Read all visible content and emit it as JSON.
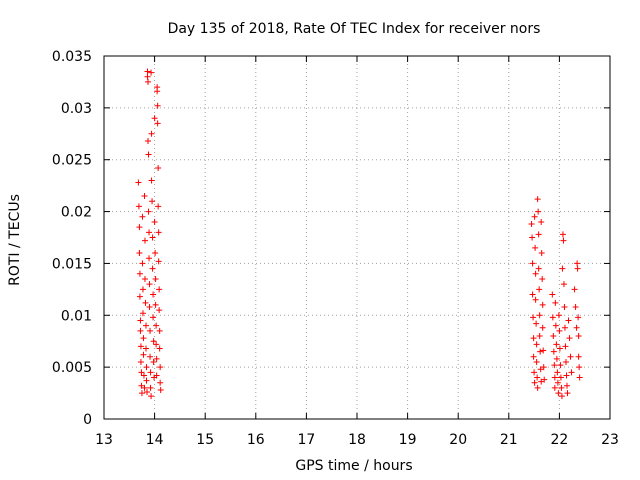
{
  "chart_data": {
    "type": "scatter",
    "title": "Day 135 of 2018, Rate Of TEC Index for receiver nors",
    "xlabel": "GPS time / hours",
    "ylabel": "ROTI / TECUs",
    "xlim": [
      13,
      23
    ],
    "ylim": [
      0,
      0.035
    ],
    "grid": true,
    "x_ticks": [
      13,
      14,
      15,
      16,
      17,
      18,
      19,
      20,
      21,
      22,
      23
    ],
    "x_tick_labels": [
      "13",
      "14",
      "15",
      "16",
      "17",
      "18",
      "19",
      "20",
      "21",
      "22",
      "23"
    ],
    "y_ticks": [
      0,
      0.005,
      0.01,
      0.015,
      0.02,
      0.025,
      0.03,
      0.035
    ],
    "y_tick_labels": [
      "0",
      "0.005",
      "0.01",
      "0.015",
      "0.02",
      "0.025",
      "0.03",
      "0.035"
    ],
    "marker": "+",
    "series_color": "#ff0000",
    "series": [
      {
        "name": "ROTI",
        "points": [
          [
            13.68,
            0.0228
          ],
          [
            13.69,
            0.0205
          ],
          [
            13.7,
            0.0185
          ],
          [
            13.7,
            0.016
          ],
          [
            13.71,
            0.014
          ],
          [
            13.71,
            0.0118
          ],
          [
            13.72,
            0.0095
          ],
          [
            13.72,
            0.0085
          ],
          [
            13.73,
            0.007
          ],
          [
            13.73,
            0.0055
          ],
          [
            13.74,
            0.0045
          ],
          [
            13.74,
            0.0032
          ],
          [
            13.75,
            0.0025
          ],
          [
            13.76,
            0.0195
          ],
          [
            13.76,
            0.015
          ],
          [
            13.77,
            0.0125
          ],
          [
            13.77,
            0.0102
          ],
          [
            13.78,
            0.0078
          ],
          [
            13.78,
            0.0062
          ],
          [
            13.79,
            0.0042
          ],
          [
            13.8,
            0.003
          ],
          [
            13.8,
            0.0215
          ],
          [
            13.81,
            0.0172
          ],
          [
            13.81,
            0.0135
          ],
          [
            13.82,
            0.0112
          ],
          [
            13.83,
            0.009
          ],
          [
            13.83,
            0.0068
          ],
          [
            13.84,
            0.005
          ],
          [
            13.84,
            0.0037
          ],
          [
            13.85,
            0.0026
          ],
          [
            13.86,
            0.0335
          ],
          [
            13.86,
            0.033
          ],
          [
            13.87,
            0.0325
          ],
          [
            13.87,
            0.0268
          ],
          [
            13.88,
            0.0255
          ],
          [
            13.88,
            0.02
          ],
          [
            13.89,
            0.018
          ],
          [
            13.89,
            0.0155
          ],
          [
            13.9,
            0.013
          ],
          [
            13.9,
            0.0108
          ],
          [
            13.91,
            0.0085
          ],
          [
            13.91,
            0.006
          ],
          [
            13.92,
            0.0045
          ],
          [
            13.92,
            0.003
          ],
          [
            13.93,
            0.0022
          ],
          [
            13.93,
            0.0334
          ],
          [
            13.94,
            0.0275
          ],
          [
            13.94,
            0.023
          ],
          [
            13.95,
            0.021
          ],
          [
            13.96,
            0.0175
          ],
          [
            13.96,
            0.0145
          ],
          [
            13.97,
            0.012
          ],
          [
            13.97,
            0.0098
          ],
          [
            13.98,
            0.0075
          ],
          [
            13.98,
            0.0055
          ],
          [
            13.99,
            0.004
          ],
          [
            14.0,
            0.029
          ],
          [
            14.0,
            0.019
          ],
          [
            14.01,
            0.016
          ],
          [
            14.02,
            0.0135
          ],
          [
            14.02,
            0.011
          ],
          [
            14.03,
            0.009
          ],
          [
            14.03,
            0.0072
          ],
          [
            14.04,
            0.0058
          ],
          [
            14.04,
            0.0042
          ],
          [
            14.05,
            0.032
          ],
          [
            14.05,
            0.0316
          ],
          [
            14.06,
            0.0302
          ],
          [
            14.06,
            0.0285
          ],
          [
            14.07,
            0.0242
          ],
          [
            14.07,
            0.0205
          ],
          [
            14.08,
            0.018
          ],
          [
            14.08,
            0.0152
          ],
          [
            14.09,
            0.0125
          ],
          [
            14.09,
            0.0105
          ],
          [
            14.1,
            0.0085
          ],
          [
            14.1,
            0.0068
          ],
          [
            14.11,
            0.005
          ],
          [
            14.11,
            0.0035
          ],
          [
            14.12,
            0.0028
          ],
          [
            21.45,
            0.0188
          ],
          [
            21.46,
            0.0175
          ],
          [
            21.47,
            0.015
          ],
          [
            21.47,
            0.012
          ],
          [
            21.48,
            0.0098
          ],
          [
            21.49,
            0.0078
          ],
          [
            21.49,
            0.006
          ],
          [
            21.5,
            0.0045
          ],
          [
            21.51,
            0.0035
          ],
          [
            21.51,
            0.0195
          ],
          [
            21.52,
            0.0165
          ],
          [
            21.53,
            0.014
          ],
          [
            21.53,
            0.0115
          ],
          [
            21.54,
            0.0092
          ],
          [
            21.55,
            0.0072
          ],
          [
            21.55,
            0.0055
          ],
          [
            21.56,
            0.004
          ],
          [
            21.57,
            0.003
          ],
          [
            21.57,
            0.0212
          ],
          [
            21.58,
            0.02
          ],
          [
            21.59,
            0.0178
          ],
          [
            21.59,
            0.0145
          ],
          [
            21.6,
            0.0125
          ],
          [
            21.61,
            0.01
          ],
          [
            21.61,
            0.008
          ],
          [
            21.62,
            0.0065
          ],
          [
            21.63,
            0.0048
          ],
          [
            21.64,
            0.0036
          ],
          [
            21.64,
            0.019
          ],
          [
            21.65,
            0.016
          ],
          [
            21.66,
            0.0135
          ],
          [
            21.67,
            0.011
          ],
          [
            21.67,
            0.0088
          ],
          [
            21.68,
            0.0066
          ],
          [
            21.69,
            0.005
          ],
          [
            21.7,
            0.0038
          ],
          [
            21.86,
            0.012
          ],
          [
            21.87,
            0.0098
          ],
          [
            21.88,
            0.008
          ],
          [
            21.89,
            0.0065
          ],
          [
            21.9,
            0.0052
          ],
          [
            21.91,
            0.004
          ],
          [
            21.91,
            0.003
          ],
          [
            21.92,
            0.0112
          ],
          [
            21.93,
            0.009
          ],
          [
            21.94,
            0.0072
          ],
          [
            21.95,
            0.0058
          ],
          [
            21.96,
            0.0045
          ],
          [
            21.97,
            0.0035
          ],
          [
            21.98,
            0.0025
          ],
          [
            21.99,
            0.01
          ],
          [
            22.0,
            0.0085
          ],
          [
            22.01,
            0.0068
          ],
          [
            22.02,
            0.0052
          ],
          [
            22.03,
            0.004
          ],
          [
            22.04,
            0.003
          ],
          [
            22.05,
            0.0022
          ],
          [
            22.06,
            0.0145
          ],
          [
            22.07,
            0.0178
          ],
          [
            22.08,
            0.0172
          ],
          [
            22.09,
            0.013
          ],
          [
            22.1,
            0.0108
          ],
          [
            22.11,
            0.0088
          ],
          [
            22.12,
            0.007
          ],
          [
            22.13,
            0.0055
          ],
          [
            22.14,
            0.0042
          ],
          [
            22.15,
            0.0032
          ],
          [
            22.16,
            0.0025
          ],
          [
            22.18,
            0.0095
          ],
          [
            22.2,
            0.0078
          ],
          [
            22.22,
            0.006
          ],
          [
            22.24,
            0.0045
          ],
          [
            22.3,
            0.0125
          ],
          [
            22.32,
            0.0108
          ],
          [
            22.34,
            0.0088
          ],
          [
            22.35,
            0.015
          ],
          [
            22.36,
            0.0145
          ],
          [
            22.37,
            0.0098
          ],
          [
            22.38,
            0.008
          ],
          [
            22.38,
            0.006
          ],
          [
            22.39,
            0.005
          ],
          [
            22.4,
            0.004
          ]
        ]
      }
    ]
  }
}
